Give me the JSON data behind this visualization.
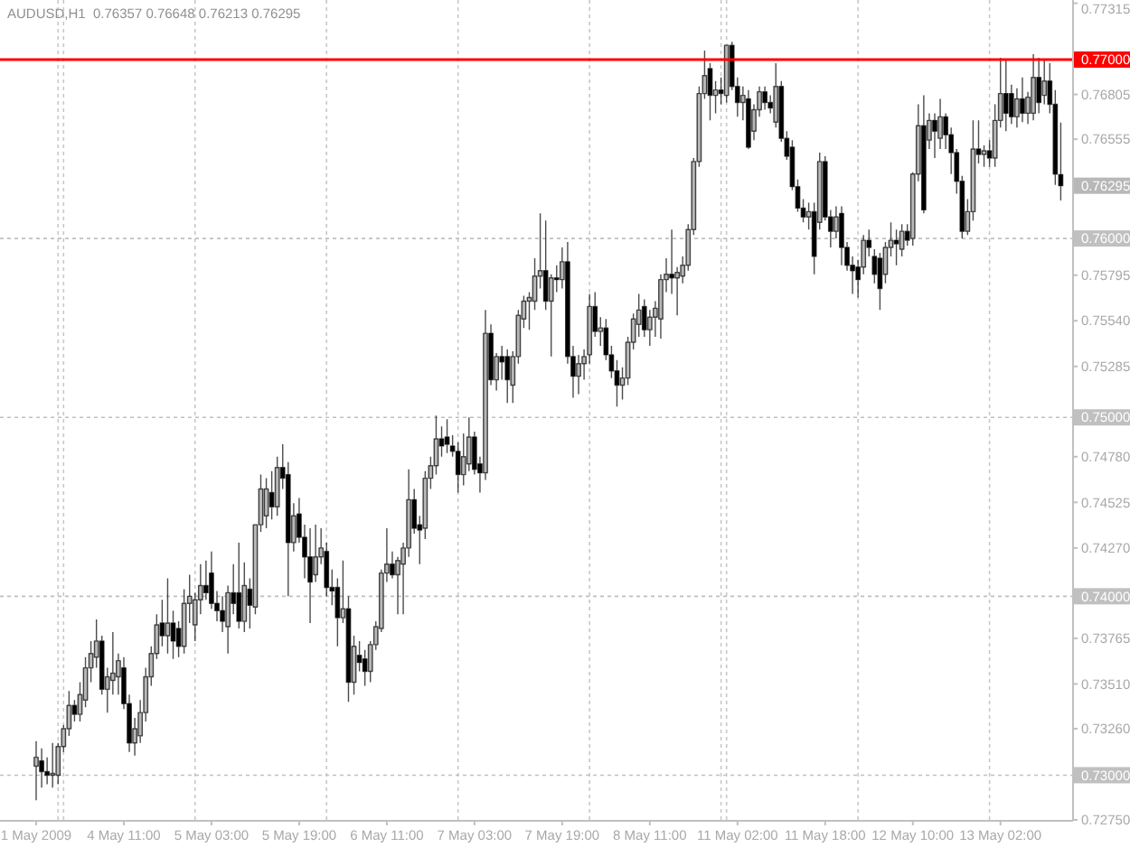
{
  "chart_data": {
    "type": "candlestick",
    "title": "AUDUSD,H1  0.76357 0.76648 0.76213 0.76295",
    "color": "#000000",
    "categories": [
      "1 May 2009",
      null,
      null,
      null,
      null,
      null,
      null,
      null,
      null,
      null,
      null,
      null,
      null,
      null,
      null,
      null,
      "4 May 11:00",
      null,
      null,
      null,
      null,
      null,
      null,
      null,
      null,
      null,
      null,
      null,
      null,
      null,
      null,
      null,
      "5 May 03:00",
      null,
      null,
      null,
      null,
      null,
      null,
      null,
      null,
      null,
      null,
      null,
      null,
      null,
      null,
      null,
      "5 May 19:00",
      null,
      null,
      null,
      null,
      null,
      null,
      null,
      null,
      null,
      null,
      null,
      null,
      null,
      null,
      null,
      "6 May 11:00",
      null,
      null,
      null,
      null,
      null,
      null,
      null,
      null,
      null,
      null,
      null,
      null,
      null,
      null,
      null,
      "7 May 03:00",
      null,
      null,
      null,
      null,
      null,
      null,
      null,
      null,
      null,
      null,
      null,
      null,
      null,
      null,
      null,
      "7 May 19:00",
      null,
      null,
      null,
      null,
      null,
      null,
      null,
      null,
      null,
      null,
      null,
      null,
      null,
      null,
      null,
      "8 May 11:00",
      null,
      null,
      null,
      null,
      null,
      null,
      null,
      null,
      null,
      null,
      null,
      null,
      null,
      null,
      null,
      "11 May 02:00",
      null,
      null,
      null,
      null,
      null,
      null,
      null,
      null,
      null,
      null,
      null,
      null,
      null,
      null,
      null,
      "11 May 18:00",
      null,
      null,
      null,
      null,
      null,
      null,
      null,
      null,
      null,
      null,
      null,
      null,
      null,
      null,
      null,
      "12 May 10:00",
      null,
      null,
      null,
      null,
      null,
      null,
      null,
      null,
      null,
      null,
      null,
      null,
      null,
      null,
      null,
      "13 May 02:00",
      null,
      null,
      null,
      null,
      null,
      null,
      null,
      null,
      null,
      null,
      null
    ],
    "ohlc": [
      [
        0.7305,
        0.7319,
        0.7286,
        0.731
      ],
      [
        0.7308,
        0.7315,
        0.7293,
        0.7302
      ],
      [
        0.7302,
        0.731,
        0.7295,
        0.73
      ],
      [
        0.73,
        0.7318,
        0.7293,
        0.7301
      ],
      [
        0.73,
        0.7318,
        0.7295,
        0.7316
      ],
      [
        0.7316,
        0.7328,
        0.7313,
        0.7326
      ],
      [
        0.7326,
        0.7347,
        0.7322,
        0.7339
      ],
      [
        0.7339,
        0.7342,
        0.733,
        0.7334
      ],
      [
        0.7334,
        0.7352,
        0.733,
        0.7345
      ],
      [
        0.7342,
        0.7366,
        0.7338,
        0.736
      ],
      [
        0.736,
        0.7375,
        0.7352,
        0.7368
      ],
      [
        0.7366,
        0.7387,
        0.736,
        0.7375
      ],
      [
        0.7375,
        0.7378,
        0.7345,
        0.7348
      ],
      [
        0.7348,
        0.736,
        0.7335,
        0.7355
      ],
      [
        0.7353,
        0.738,
        0.7345,
        0.7357
      ],
      [
        0.7355,
        0.7368,
        0.7345,
        0.7364
      ],
      [
        0.736,
        0.7366,
        0.7337,
        0.734
      ],
      [
        0.734,
        0.7345,
        0.7313,
        0.7318
      ],
      [
        0.7318,
        0.7332,
        0.7311,
        0.7326
      ],
      [
        0.7322,
        0.7342,
        0.7318,
        0.7335
      ],
      [
        0.7335,
        0.736,
        0.733,
        0.7355
      ],
      [
        0.7355,
        0.7372,
        0.735,
        0.7368
      ],
      [
        0.7368,
        0.739,
        0.7365,
        0.7384
      ],
      [
        0.7385,
        0.7398,
        0.7372,
        0.7378
      ],
      [
        0.7378,
        0.741,
        0.7368,
        0.7385
      ],
      [
        0.7385,
        0.7392,
        0.7365,
        0.7375
      ],
      [
        0.7382,
        0.7386,
        0.7366,
        0.7372
      ],
      [
        0.7372,
        0.7404,
        0.7368,
        0.7396
      ],
      [
        0.7396,
        0.7412,
        0.7385,
        0.74
      ],
      [
        0.7384,
        0.7402,
        0.7375,
        0.7398
      ],
      [
        0.7398,
        0.7418,
        0.739,
        0.7406
      ],
      [
        0.7406,
        0.742,
        0.7398,
        0.7402
      ],
      [
        0.7413,
        0.7425,
        0.7393,
        0.7396
      ],
      [
        0.7396,
        0.7403,
        0.7386,
        0.7392
      ],
      [
        0.7392,
        0.74,
        0.738,
        0.7386
      ],
      [
        0.7383,
        0.7406,
        0.7368,
        0.7402
      ],
      [
        0.7402,
        0.7418,
        0.739,
        0.7396
      ],
      [
        0.7402,
        0.743,
        0.7382,
        0.7386
      ],
      [
        0.7386,
        0.7419,
        0.738,
        0.7406
      ],
      [
        0.7404,
        0.741,
        0.7382,
        0.7395
      ],
      [
        0.7394,
        0.744,
        0.739,
        0.744
      ],
      [
        0.744,
        0.7468,
        0.7436,
        0.746
      ],
      [
        0.7445,
        0.7466,
        0.7438,
        0.746
      ],
      [
        0.7458,
        0.747,
        0.7443,
        0.745
      ],
      [
        0.745,
        0.7478,
        0.7445,
        0.7472
      ],
      [
        0.7472,
        0.7485,
        0.746,
        0.7466
      ],
      [
        0.7468,
        0.7475,
        0.74,
        0.743
      ],
      [
        0.743,
        0.7452,
        0.7425,
        0.7445
      ],
      [
        0.7446,
        0.7455,
        0.743,
        0.7433
      ],
      [
        0.7433,
        0.744,
        0.741,
        0.7422
      ],
      [
        0.7422,
        0.7438,
        0.7385,
        0.7408
      ],
      [
        0.7412,
        0.744,
        0.7408,
        0.7422
      ],
      [
        0.7422,
        0.7438,
        0.7418,
        0.7427
      ],
      [
        0.7425,
        0.743,
        0.74,
        0.7405
      ],
      [
        0.7405,
        0.7415,
        0.7395,
        0.7403
      ],
      [
        0.7405,
        0.741,
        0.7372,
        0.7388
      ],
      [
        0.7388,
        0.742,
        0.7385,
        0.7393
      ],
      [
        0.7393,
        0.74,
        0.7341,
        0.7352
      ],
      [
        0.7352,
        0.7378,
        0.7345,
        0.7372
      ],
      [
        0.7367,
        0.7375,
        0.7358,
        0.7363
      ],
      [
        0.7365,
        0.737,
        0.735,
        0.7358
      ],
      [
        0.7358,
        0.7375,
        0.7352,
        0.7373
      ],
      [
        0.7373,
        0.7386,
        0.737,
        0.7383
      ],
      [
        0.7382,
        0.7415,
        0.738,
        0.7413
      ],
      [
        0.7413,
        0.7438,
        0.7408,
        0.7418
      ],
      [
        0.7418,
        0.7425,
        0.741,
        0.7412
      ],
      [
        0.7412,
        0.7422,
        0.739,
        0.742
      ],
      [
        0.7418,
        0.743,
        0.739,
        0.7427
      ],
      [
        0.7427,
        0.7471,
        0.7422,
        0.7454
      ],
      [
        0.7454,
        0.746,
        0.7435,
        0.7438
      ],
      [
        0.744,
        0.7445,
        0.7418,
        0.7437
      ],
      [
        0.7438,
        0.747,
        0.7432,
        0.7466
      ],
      [
        0.7466,
        0.7478,
        0.746,
        0.7473
      ],
      [
        0.7473,
        0.7501,
        0.7468,
        0.7488
      ],
      [
        0.7488,
        0.7495,
        0.7478,
        0.7484
      ],
      [
        0.7489,
        0.7499,
        0.748,
        0.7485
      ],
      [
        0.7484,
        0.749,
        0.7478,
        0.7481
      ],
      [
        0.7481,
        0.7486,
        0.7458,
        0.7468
      ],
      [
        0.7468,
        0.7491,
        0.7462,
        0.7478
      ],
      [
        0.7474,
        0.75,
        0.747,
        0.7489
      ],
      [
        0.7489,
        0.7492,
        0.7468,
        0.7471
      ],
      [
        0.7474,
        0.7478,
        0.7458,
        0.7469
      ],
      [
        0.7469,
        0.756,
        0.7465,
        0.7547
      ],
      [
        0.7547,
        0.7552,
        0.7518,
        0.7521
      ],
      [
        0.7521,
        0.7536,
        0.7515,
        0.7534
      ],
      [
        0.7534,
        0.754,
        0.7521,
        0.7531
      ],
      [
        0.7534,
        0.7538,
        0.7508,
        0.7521
      ],
      [
        0.7518,
        0.7537,
        0.7508,
        0.7534
      ],
      [
        0.7534,
        0.756,
        0.753,
        0.7557
      ],
      [
        0.7555,
        0.7568,
        0.755,
        0.7565
      ],
      [
        0.7565,
        0.757,
        0.7549,
        0.7567
      ],
      [
        0.7565,
        0.7589,
        0.756,
        0.7579
      ],
      [
        0.7579,
        0.7614,
        0.7572,
        0.7582
      ],
      [
        0.7582,
        0.761,
        0.756,
        0.7565
      ],
      [
        0.7565,
        0.758,
        0.7534,
        0.7578
      ],
      [
        0.7578,
        0.7585,
        0.757,
        0.7577
      ],
      [
        0.7577,
        0.7595,
        0.7572,
        0.7587
      ],
      [
        0.7587,
        0.7598,
        0.753,
        0.7534
      ],
      [
        0.7534,
        0.754,
        0.7511,
        0.7523
      ],
      [
        0.7523,
        0.7535,
        0.7513,
        0.753
      ],
      [
        0.753,
        0.7538,
        0.7521,
        0.7534
      ],
      [
        0.7535,
        0.7569,
        0.753,
        0.7562
      ],
      [
        0.7562,
        0.757,
        0.7545,
        0.7548
      ],
      [
        0.7548,
        0.7556,
        0.754,
        0.755
      ],
      [
        0.755,
        0.7555,
        0.7532,
        0.7535
      ],
      [
        0.7535,
        0.754,
        0.7522,
        0.7526
      ],
      [
        0.7526,
        0.7532,
        0.7506,
        0.7518
      ],
      [
        0.7518,
        0.7528,
        0.751,
        0.7522
      ],
      [
        0.7522,
        0.7545,
        0.7518,
        0.7542
      ],
      [
        0.7542,
        0.7558,
        0.7538,
        0.7555
      ],
      [
        0.7552,
        0.7569,
        0.7545,
        0.756
      ],
      [
        0.7562,
        0.7566,
        0.7545,
        0.7549
      ],
      [
        0.7549,
        0.756,
        0.754,
        0.7556
      ],
      [
        0.7556,
        0.7565,
        0.7545,
        0.7561
      ],
      [
        0.7555,
        0.758,
        0.7544,
        0.7577
      ],
      [
        0.7577,
        0.7589,
        0.757,
        0.758
      ],
      [
        0.758,
        0.7605,
        0.7569,
        0.7578
      ],
      [
        0.7578,
        0.7584,
        0.7557,
        0.7581
      ],
      [
        0.7579,
        0.759,
        0.7575,
        0.7585
      ],
      [
        0.7585,
        0.7608,
        0.7582,
        0.7605
      ],
      [
        0.7605,
        0.7645,
        0.7602,
        0.7643
      ],
      [
        0.7643,
        0.7685,
        0.764,
        0.7681
      ],
      [
        0.7681,
        0.7705,
        0.7678,
        0.7691
      ],
      [
        0.7695,
        0.7698,
        0.7666,
        0.768
      ],
      [
        0.768,
        0.7688,
        0.767,
        0.7683
      ],
      [
        0.7683,
        0.769,
        0.7675,
        0.7681
      ],
      [
        0.768,
        0.7708,
        0.7676,
        0.7708
      ],
      [
        0.7708,
        0.771,
        0.7683,
        0.7685
      ],
      [
        0.7685,
        0.769,
        0.7668,
        0.7676
      ],
      [
        0.7676,
        0.7685,
        0.7666,
        0.768
      ],
      [
        0.7678,
        0.7683,
        0.765,
        0.7651
      ],
      [
        0.766,
        0.7675,
        0.7655,
        0.7672
      ],
      [
        0.7672,
        0.7685,
        0.7668,
        0.7682
      ],
      [
        0.7682,
        0.7685,
        0.7672,
        0.7676
      ],
      [
        0.7676,
        0.768,
        0.767,
        0.7673
      ],
      [
        0.7665,
        0.7698,
        0.7662,
        0.7685
      ],
      [
        0.7685,
        0.7688,
        0.7654,
        0.7656
      ],
      [
        0.7656,
        0.766,
        0.7644,
        0.7646
      ],
      [
        0.7651,
        0.7655,
        0.7627,
        0.7629
      ],
      [
        0.7629,
        0.7633,
        0.7615,
        0.7617
      ],
      [
        0.7617,
        0.7622,
        0.7609,
        0.7612
      ],
      [
        0.7612,
        0.762,
        0.7605,
        0.7615
      ],
      [
        0.7615,
        0.762,
        0.758,
        0.759
      ],
      [
        0.7609,
        0.7648,
        0.7605,
        0.7643
      ],
      [
        0.7643,
        0.7646,
        0.761,
        0.7612
      ],
      [
        0.7612,
        0.7616,
        0.7595,
        0.7604
      ],
      [
        0.7604,
        0.7618,
        0.76,
        0.7612
      ],
      [
        0.7614,
        0.7618,
        0.7585,
        0.7595
      ],
      [
        0.7595,
        0.7598,
        0.7582,
        0.7585
      ],
      [
        0.7585,
        0.759,
        0.7569,
        0.7582
      ],
      [
        0.7584,
        0.7588,
        0.7567,
        0.7577
      ],
      [
        0.7584,
        0.7602,
        0.758,
        0.7599
      ],
      [
        0.7599,
        0.7605,
        0.759,
        0.7595
      ],
      [
        0.759,
        0.7594,
        0.7575,
        0.758
      ],
      [
        0.7589,
        0.7592,
        0.756,
        0.7572
      ],
      [
        0.758,
        0.7598,
        0.7575,
        0.7595
      ],
      [
        0.7595,
        0.7609,
        0.759,
        0.7599
      ],
      [
        0.7599,
        0.7605,
        0.7585,
        0.7597
      ],
      [
        0.7594,
        0.7608,
        0.759,
        0.7604
      ],
      [
        0.7604,
        0.7608,
        0.7596,
        0.7599
      ],
      [
        0.76,
        0.7637,
        0.7596,
        0.7636
      ],
      [
        0.7636,
        0.7675,
        0.7632,
        0.7663
      ],
      [
        0.7663,
        0.768,
        0.7614,
        0.7616
      ],
      [
        0.7655,
        0.767,
        0.765,
        0.7666
      ],
      [
        0.7666,
        0.767,
        0.7645,
        0.766
      ],
      [
        0.7656,
        0.7678,
        0.765,
        0.7668
      ],
      [
        0.7668,
        0.767,
        0.765,
        0.7658
      ],
      [
        0.7658,
        0.7662,
        0.7636,
        0.7648
      ],
      [
        0.7648,
        0.765,
        0.7625,
        0.7632
      ],
      [
        0.7632,
        0.7635,
        0.76,
        0.7604
      ],
      [
        0.7604,
        0.7622,
        0.7602,
        0.7615
      ],
      [
        0.7615,
        0.7666,
        0.761,
        0.765
      ],
      [
        0.765,
        0.7666,
        0.7642,
        0.7647
      ],
      [
        0.7647,
        0.7652,
        0.764,
        0.7649
      ],
      [
        0.7649,
        0.7655,
        0.764,
        0.7645
      ],
      [
        0.7645,
        0.7675,
        0.764,
        0.7666
      ],
      [
        0.7666,
        0.7701,
        0.7662,
        0.7681
      ],
      [
        0.7681,
        0.77,
        0.766,
        0.767
      ],
      [
        0.7681,
        0.7686,
        0.7664,
        0.7668
      ],
      [
        0.7668,
        0.7684,
        0.7662,
        0.7678
      ],
      [
        0.7678,
        0.769,
        0.7665,
        0.767
      ],
      [
        0.767,
        0.7682,
        0.7664,
        0.7679
      ],
      [
        0.767,
        0.7703,
        0.7666,
        0.769
      ],
      [
        0.769,
        0.7701,
        0.767,
        0.7676
      ],
      [
        0.768,
        0.77,
        0.7675,
        0.7688
      ],
      [
        0.7688,
        0.7698,
        0.767,
        0.7675
      ],
      [
        0.7675,
        0.7683,
        0.763,
        0.7636
      ],
      [
        0.76357,
        0.76648,
        0.76213,
        0.76295
      ]
    ],
    "ylim": [
      0.7275,
      0.77333
    ],
    "yticks": [
      {
        "value": 0.77315,
        "label": "0.77315"
      },
      {
        "value": 0.76805,
        "label": "0.76805"
      },
      {
        "value": 0.76555,
        "label": "0.76555"
      },
      {
        "value": 0.75795,
        "label": "0.75795"
      },
      {
        "value": 0.7554,
        "label": "0.75540"
      },
      {
        "value": 0.75285,
        "label": "0.75285"
      },
      {
        "value": 0.7478,
        "label": "0.74780"
      },
      {
        "value": 0.74525,
        "label": "0.74525"
      },
      {
        "value": 0.7427,
        "label": "0.74270"
      },
      {
        "value": 0.73765,
        "label": "0.73765"
      },
      {
        "value": 0.7351,
        "label": "0.73510"
      },
      {
        "value": 0.7326,
        "label": "0.73260"
      },
      {
        "value": 0.7275,
        "label": "0.72750"
      }
    ],
    "ref_lines": [
      {
        "axis": "y",
        "value": 0.77,
        "label": "0.77000",
        "color": "#ff0000",
        "line_style": "solid"
      },
      {
        "axis": "y",
        "value": 0.76,
        "label": "0.76000",
        "color": "#c0c0c0",
        "line_style": "dashed"
      },
      {
        "axis": "y",
        "value": 0.75,
        "label": "0.75000",
        "color": "#c0c0c0",
        "line_style": "dashed"
      },
      {
        "axis": "y",
        "value": 0.74,
        "label": "0.74000",
        "color": "#c0c0c0",
        "line_style": "dashed"
      },
      {
        "axis": "y",
        "value": 0.73,
        "label": "0.73000",
        "color": "#c0c0c0",
        "line_style": "dashed"
      }
    ],
    "annotations": [
      "0.76295"
    ]
  }
}
